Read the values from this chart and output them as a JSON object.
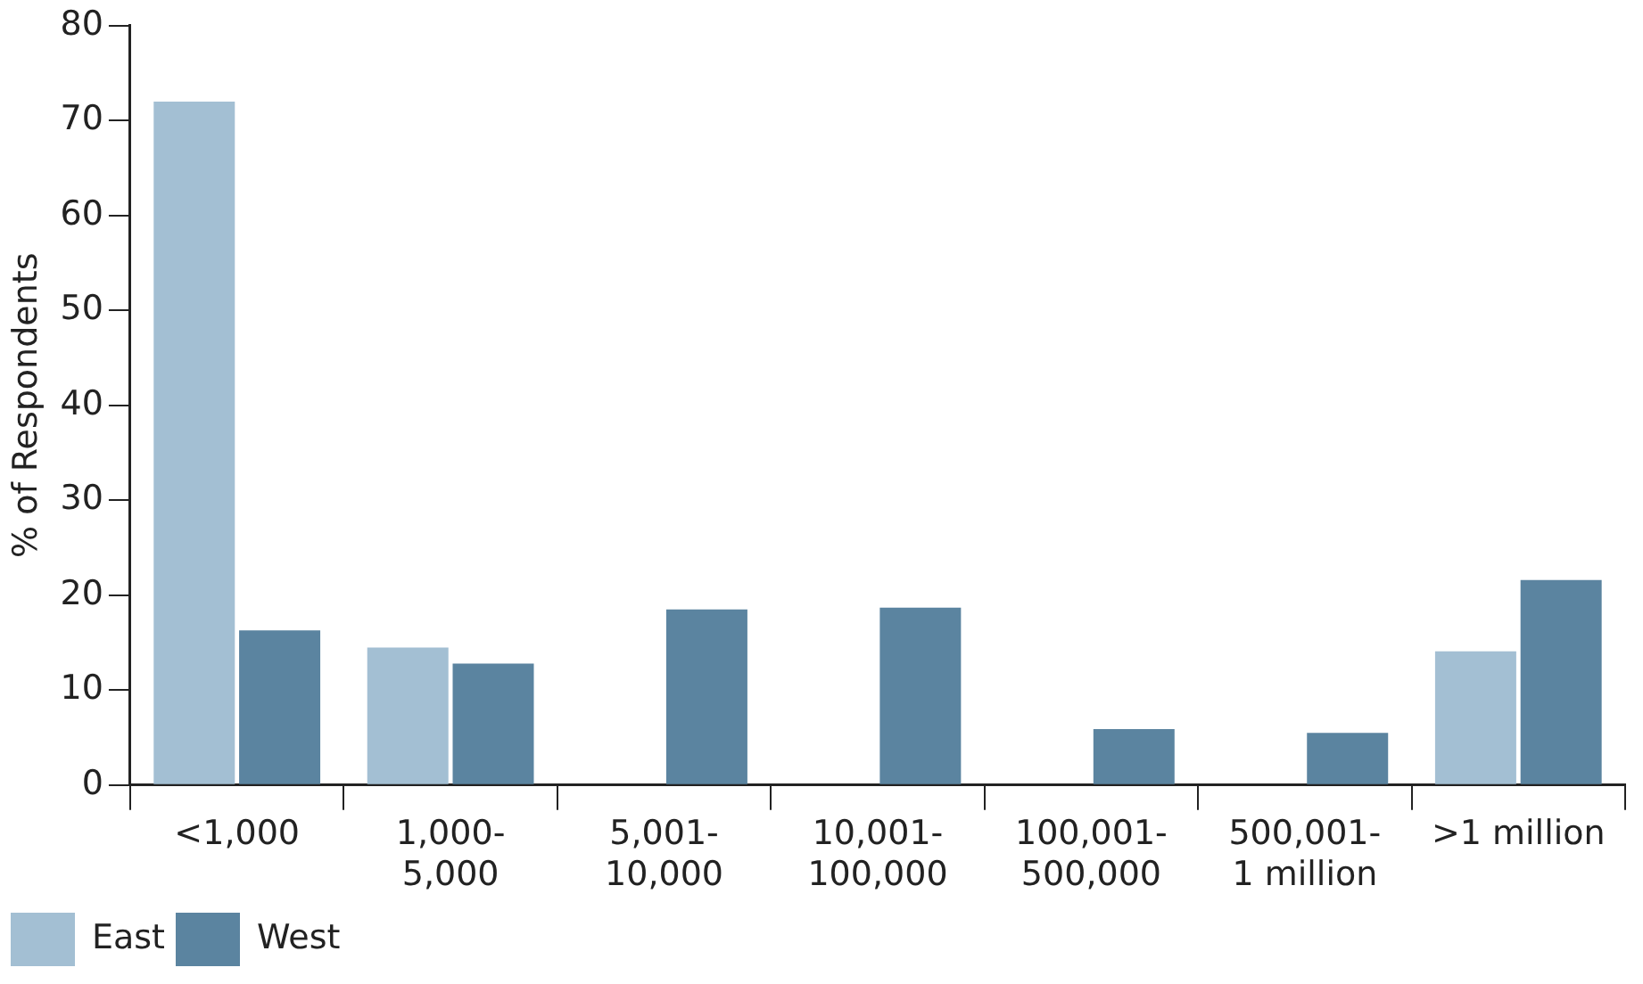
{
  "chart_data": {
    "type": "bar",
    "ylabel": "% of Respondents",
    "categories": [
      "<1,000",
      "1,000-\n5,000",
      "5,001-\n10,000",
      "10,001-\n100,000",
      "100,001-\n500,000",
      "500,001-\n1 million",
      ">1 million"
    ],
    "series": [
      {
        "name": "East",
        "color": "#a3bfd3",
        "values": [
          72,
          14.5,
          0,
          0,
          0,
          0,
          14.1
        ]
      },
      {
        "name": "West",
        "color": "#5b84a0",
        "values": [
          16.3,
          12.8,
          18.5,
          18.7,
          5.9,
          5.5,
          21.6
        ]
      }
    ],
    "ylim": [
      0,
      80
    ],
    "yticks": [
      0,
      10,
      20,
      30,
      40,
      50,
      60,
      70,
      80
    ],
    "grid": false,
    "legend": "bottom left"
  }
}
